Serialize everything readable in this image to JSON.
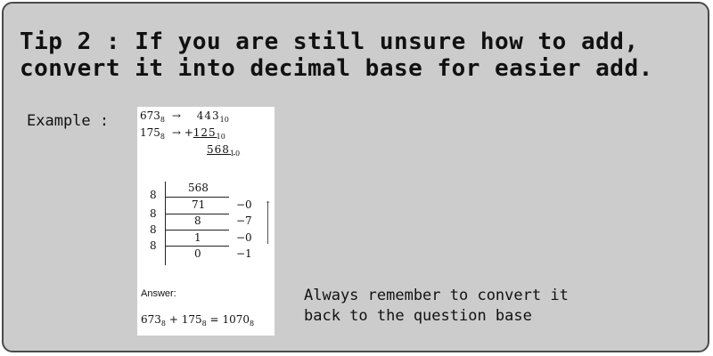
{
  "title": {
    "line1": "Tip 2 : If you are still unsure how to add,",
    "line2": "convert it into decimal base for easier add."
  },
  "example_label": "Example :",
  "conversion": {
    "row1": {
      "left": "673",
      "left_base": "8",
      "arrow": "→",
      "right": "443",
      "right_base": "10"
    },
    "row2": {
      "left": "175",
      "left_base": "8",
      "arrow": "→ +",
      "right": "125",
      "right_base": "10"
    },
    "sum": {
      "value": "568",
      "base": "10"
    }
  },
  "division": {
    "divisors": [
      "8",
      "8",
      "8",
      "8"
    ],
    "quotients": [
      "568",
      "71",
      "8",
      "1",
      "0"
    ],
    "remainders": [
      "−0",
      "−7",
      "−0",
      "−1"
    ]
  },
  "answer": {
    "label": "Answer:",
    "a": "673",
    "a_base": "8",
    "plus": "+",
    "b": "175",
    "b_base": "8",
    "eq": "=",
    "result": "1070",
    "result_base": "8"
  },
  "note": {
    "line1": "Always remember to convert it",
    "line2": "back to the question base"
  }
}
